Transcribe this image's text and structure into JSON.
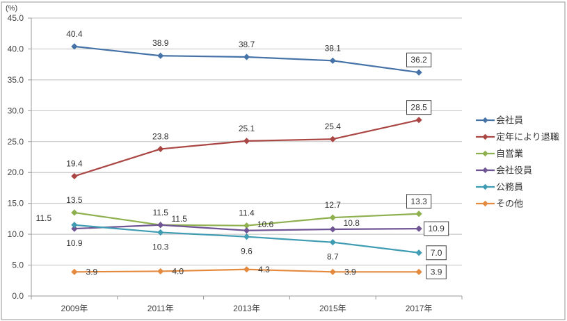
{
  "chart_data": {
    "type": "line",
    "title": "",
    "xlabel": "",
    "ylabel": "(%)",
    "categories": [
      "2009年",
      "2011年",
      "2013年",
      "2015年",
      "2017年"
    ],
    "ylim": [
      0,
      45
    ],
    "y_step": 5,
    "y_ticks": [
      "0.0",
      "5.0",
      "10.0",
      "15.0",
      "20.0",
      "25.0",
      "30.0",
      "35.0",
      "40.0",
      "45.0"
    ],
    "grid": true,
    "legend_position": "right",
    "series": [
      {
        "name": "会社員",
        "color": "#4572a7",
        "values": [
          40.4,
          38.9,
          38.7,
          38.1,
          36.2
        ],
        "data_labels": [
          "40.4",
          "38.9",
          "38.7",
          "38.1",
          "36.2"
        ],
        "label_positions": [
          "above",
          "above",
          "above",
          "above",
          "above"
        ],
        "boxed": [
          false,
          false,
          false,
          false,
          true
        ]
      },
      {
        "name": "定年により退職",
        "color": "#aa4643",
        "values": [
          19.4,
          23.8,
          25.1,
          25.4,
          28.5
        ],
        "data_labels": [
          "19.4",
          "23.8",
          "25.1",
          "25.4",
          "28.5"
        ],
        "label_positions": [
          "above",
          "above",
          "above",
          "above",
          "above"
        ],
        "boxed": [
          false,
          false,
          false,
          false,
          true
        ]
      },
      {
        "name": "自営業",
        "color": "#8fb04f",
        "values": [
          13.5,
          11.5,
          11.4,
          12.7,
          13.3
        ],
        "data_labels": [
          "13.5",
          "11.5",
          "11.4",
          "12.7",
          "13.3"
        ],
        "label_positions": [
          "above",
          "above",
          "above",
          "above",
          "above"
        ],
        "boxed": [
          false,
          false,
          false,
          false,
          true
        ]
      },
      {
        "name": "会社役員",
        "color": "#6f5594",
        "values": [
          10.9,
          11.5,
          10.6,
          10.8,
          10.9
        ],
        "data_labels": [
          "10.9",
          "11.5",
          "10.6",
          "10.8",
          "10.9"
        ],
        "label_positions": [
          "below",
          "above-right",
          "above-right",
          "above-right",
          "right"
        ],
        "boxed": [
          false,
          false,
          false,
          false,
          true
        ]
      },
      {
        "name": "公務員",
        "color": "#3f9cb3",
        "values": [
          11.5,
          10.3,
          9.6,
          8.7,
          7.0
        ],
        "data_labels": [
          "11.5",
          "10.3",
          "9.6",
          "8.7",
          "7.0"
        ],
        "label_positions": [
          "above-left",
          "below",
          "below",
          "below",
          "right"
        ],
        "boxed": [
          false,
          false,
          false,
          false,
          true
        ]
      },
      {
        "name": "その他",
        "color": "#e48a3f",
        "values": [
          3.9,
          4.0,
          4.3,
          3.9,
          3.9
        ],
        "data_labels": [
          "3.9",
          "4.0",
          "4.3",
          "3.9",
          "3.9"
        ],
        "label_positions": [
          "right",
          "right",
          "right",
          "right",
          "right"
        ],
        "boxed": [
          false,
          false,
          false,
          false,
          true
        ]
      }
    ]
  }
}
